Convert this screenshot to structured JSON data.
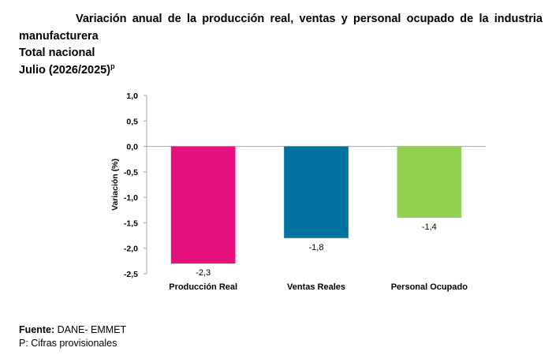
{
  "title": {
    "line1": "Variación anual de la producción real, ventas y personal ocupado de la industria",
    "line2": "manufacturera",
    "line3": "Total nacional",
    "line4": "Julio (2026/2025)",
    "line4_sup": "p"
  },
  "chart_data": {
    "type": "bar",
    "categories": [
      "Producción Real",
      "Ventas Reales",
      "Personal Ocupado"
    ],
    "values": [
      -2.3,
      -1.8,
      -1.4
    ],
    "data_labels": [
      "-2,3",
      "-1,8",
      "-1,4"
    ],
    "colors": [
      "#E6117F",
      "#00739E",
      "#92D050"
    ],
    "ylabel": "Variación (%)",
    "ylim": [
      -2.5,
      1.0
    ],
    "yticks": [
      1.0,
      0.5,
      0.0,
      -0.5,
      -1.0,
      -1.5,
      -2.0,
      -2.5
    ],
    "ytick_labels": [
      "1,0",
      "0,5",
      "0,0",
      "-0,5",
      "-1,0",
      "-1,5",
      "-2,0",
      "-2,5"
    ],
    "grid": false,
    "legend": "none"
  },
  "footer": {
    "source_label": "Fuente:",
    "source_value": " DANE- EMMET",
    "note": "P: Cifras provisionales"
  }
}
